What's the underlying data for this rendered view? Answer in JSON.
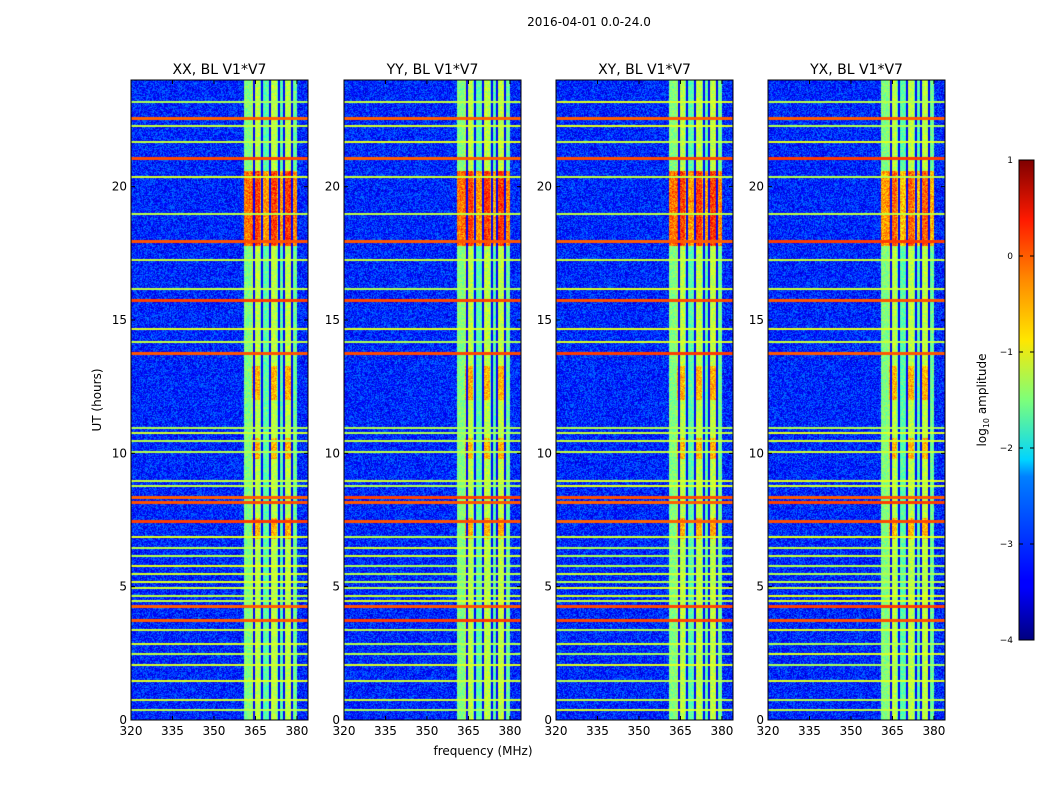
{
  "chart_data": {
    "type": "heatmap",
    "suptitle": "2016-04-01 0.0-24.0",
    "xlabel": "frequency (MHz)",
    "ylabel": "UT (hours)",
    "xlim": [
      320,
      384
    ],
    "ylim": [
      0,
      24
    ],
    "xticks": [
      320,
      335,
      350,
      365,
      380
    ],
    "yticks": [
      0,
      5,
      10,
      15,
      20
    ],
    "panels": [
      {
        "title": "XX, BL V1*V7",
        "pol": "XX"
      },
      {
        "title": "YY, BL V1*V7",
        "pol": "YY"
      },
      {
        "title": "XY, BL V1*V7",
        "pol": "XY"
      },
      {
        "title": "YX, BL V1*V7",
        "pol": "YX"
      }
    ],
    "colorbar": {
      "label": "log10 amplitude",
      "label_main": "log",
      "label_sub": "10",
      "label_rest": " amplitude",
      "range": [
        -4,
        1
      ],
      "ticks": [
        1,
        0,
        -1,
        -2,
        -3,
        -4
      ],
      "tick_labels": [
        "1",
        "0",
        "−1",
        "−2",
        "−3",
        "−4"
      ]
    },
    "features": {
      "background_log_amp": -3.2,
      "vertical_bands_mhz": [
        [
          361,
          364,
          -1.5
        ],
        [
          364,
          367,
          -1.2
        ],
        [
          367,
          370,
          -1.7
        ],
        [
          370,
          373,
          -1.2
        ],
        [
          373,
          375,
          -1.7
        ],
        [
          375,
          378,
          -1.2
        ],
        [
          378,
          380,
          -1.6
        ]
      ],
      "gap_lines_mhz": [
        364,
        367,
        370,
        373,
        375,
        378
      ],
      "strong_horizontal_lines_ut": [
        22.6,
        21.1,
        18.0,
        15.8,
        13.8,
        8.4,
        8.2,
        7.5,
        4.3,
        3.8
      ],
      "moderate_horizontal_lines_ut": [
        23.2,
        22.3,
        21.7,
        20.4,
        19.0,
        17.3,
        16.2,
        14.7,
        14.2,
        11.0,
        10.8,
        10.5,
        10.1,
        9.0,
        8.8,
        6.9,
        6.5,
        6.2,
        5.8,
        5.5,
        5.2,
        5.0,
        4.7,
        4.5,
        3.4,
        2.9,
        2.5,
        2.1,
        1.5,
        0.8,
        0.4
      ],
      "hot_region_ut": [
        17.8,
        20.6
      ],
      "warm_region_ut": [
        [
          12.0,
          13.3
        ],
        [
          9.8,
          10.6
        ],
        [
          6.8,
          7.6
        ]
      ],
      "colormap": "jet"
    }
  }
}
